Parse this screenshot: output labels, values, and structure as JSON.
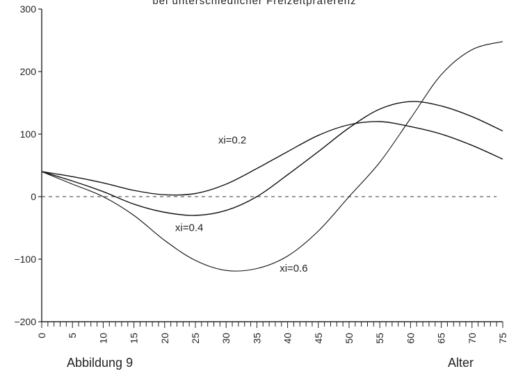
{
  "chart_data": {
    "type": "line",
    "title": "bei unterschiedlicher Freizeitpräferenz",
    "xlabel": "Alter",
    "ylabel": "",
    "xlim": [
      0,
      75
    ],
    "ylim": [
      -200,
      300
    ],
    "x_ticks": [
      0,
      5,
      10,
      15,
      20,
      25,
      30,
      35,
      40,
      45,
      50,
      55,
      60,
      65,
      70,
      75
    ],
    "y_ticks": [
      -200,
      -100,
      0,
      100,
      200,
      300
    ],
    "grid": false,
    "legend": "none",
    "zero_line": {
      "y": 0,
      "style": "dashed"
    },
    "series": [
      {
        "name": "xi=0.2",
        "x": [
          0,
          5,
          10,
          15,
          20,
          25,
          30,
          35,
          40,
          45,
          50,
          55,
          60,
          65,
          70,
          75
        ],
        "values": [
          40,
          32,
          22,
          10,
          3,
          5,
          20,
          45,
          72,
          98,
          115,
          120,
          112,
          100,
          82,
          60
        ]
      },
      {
        "name": "xi=0.4",
        "x": [
          0,
          5,
          10,
          15,
          20,
          25,
          30,
          35,
          40,
          45,
          50,
          55,
          60,
          65,
          70,
          75
        ],
        "values": [
          40,
          25,
          8,
          -12,
          -25,
          -30,
          -22,
          0,
          35,
          72,
          110,
          140,
          152,
          145,
          128,
          105
        ]
      },
      {
        "name": "xi=0.6",
        "x": [
          0,
          5,
          10,
          15,
          20,
          25,
          30,
          35,
          40,
          45,
          50,
          55,
          60,
          65,
          70,
          75
        ],
        "values": [
          40,
          20,
          0,
          -30,
          -70,
          -102,
          -118,
          -115,
          -95,
          -55,
          0,
          55,
          125,
          195,
          235,
          248
        ]
      }
    ],
    "annotations": [
      {
        "text": "xi=0.2",
        "x": 31,
        "y": 85
      },
      {
        "text": "xi=0.4",
        "x": 24,
        "y": -55
      },
      {
        "text": "xi=0.6",
        "x": 41,
        "y": -120
      }
    ]
  },
  "footer": {
    "left": "Abbildung 9",
    "right": "Alter"
  }
}
